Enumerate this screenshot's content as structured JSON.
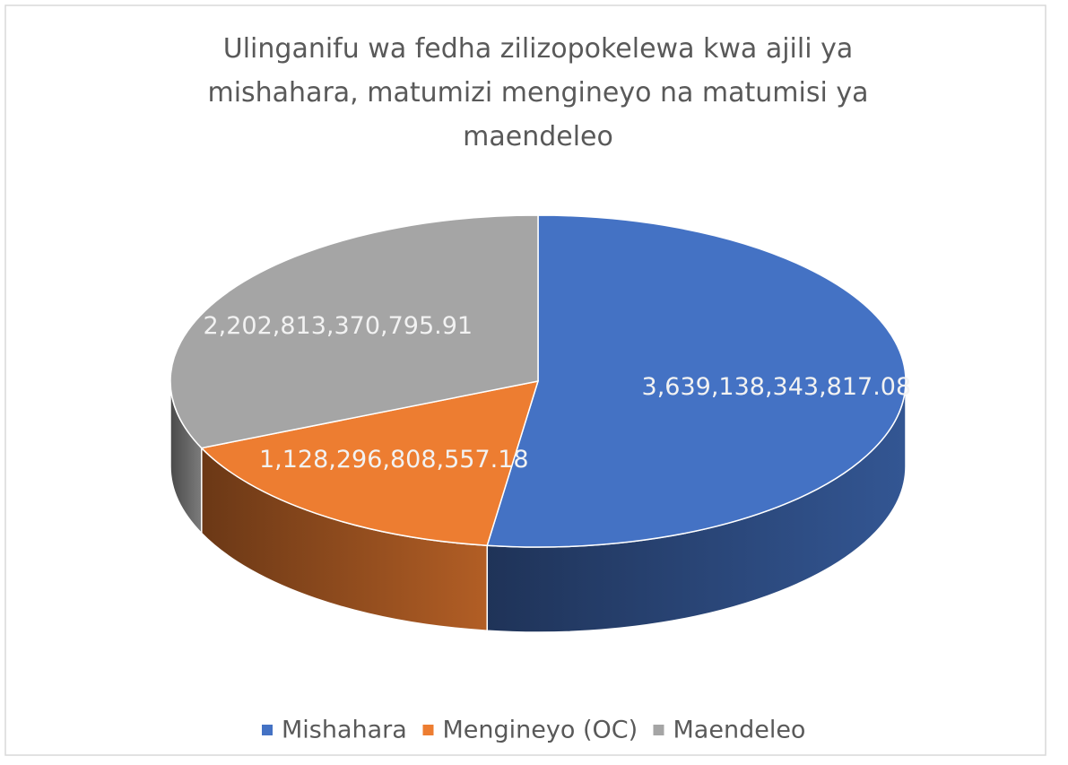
{
  "chart_data": {
    "type": "pie3d",
    "title": "Ulinganifu wa fedha zilizopokelewa kwa ajili ya mishahara, matumizi mengineyo na matumisi ya maendeleo",
    "categories": [
      "Mishahara",
      "Mengineyo (OC)",
      "Maendeleo"
    ],
    "values": [
      3639138343817.08,
      1128296808557.18,
      2202813370795.91
    ],
    "value_labels": [
      "3,639,138,343,817.08",
      "1,128,296,808,557.18",
      "2,202,813,370,795.91"
    ],
    "colors": [
      "#4472c4",
      "#ed7d31",
      "#a5a5a5"
    ],
    "legend": "bottom"
  }
}
